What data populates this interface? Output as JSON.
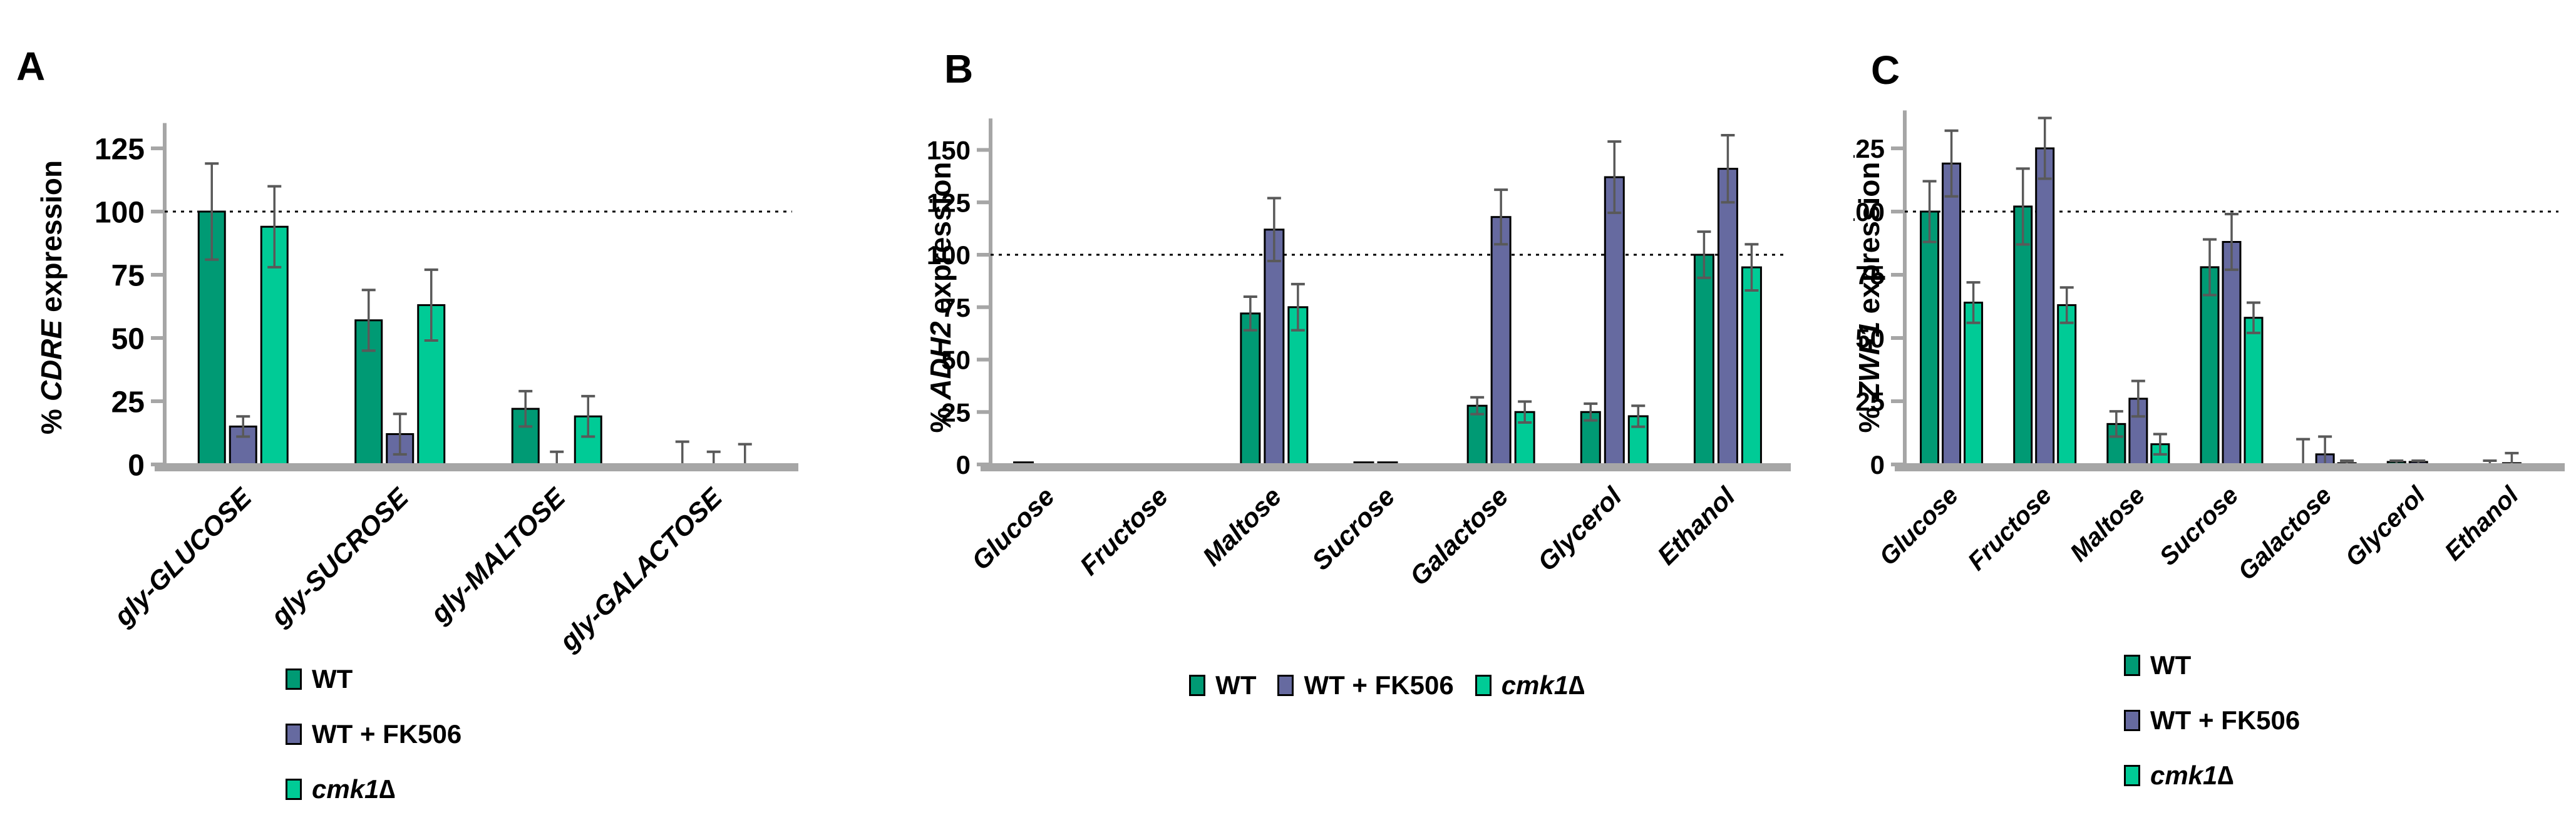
{
  "figure_type": "grouped_bar_chart_panels",
  "style": {
    "background": "#FFFFFF",
    "axis_color": "#A6A6A6",
    "error_bar_color": "#595959",
    "bar_outline_color": "#000000",
    "reference_line_color": "#000000",
    "text_color": "#000000"
  },
  "chart_data": [
    {
      "panel": "A",
      "type": "bar",
      "title": "",
      "ylabel_prefix": "%",
      "ylabel_gene": "CDRE",
      "ylabel_suffix": "expression",
      "ylabel_full": "% CDRE expression",
      "categories": [
        "gly-GLUCOSE",
        "gly-SUCROSE",
        "gly-MALTOSE",
        "gly-GALACTOSE"
      ],
      "series": [
        {
          "name": "WT",
          "color": "#009A74",
          "italic": false,
          "values": [
            100,
            57,
            22,
            0
          ],
          "errors": [
            19,
            12,
            7,
            9
          ]
        },
        {
          "name": "WT + FK506",
          "color": "#666AA0",
          "italic": false,
          "values": [
            15,
            12,
            0,
            0
          ],
          "errors": [
            4,
            8,
            5,
            5
          ]
        },
        {
          "name": "cmk1∆",
          "color": "#00CB96",
          "italic": true,
          "values": [
            94,
            63,
            19,
            0
          ],
          "errors": [
            16,
            14,
            8,
            8
          ]
        }
      ],
      "yticks": [
        0,
        25,
        50,
        75,
        100,
        125
      ],
      "ylim": [
        0,
        135
      ],
      "reference_line": 100,
      "grid": false,
      "legend_position": "bottom",
      "legend_orientation": "vertical"
    },
    {
      "panel": "B",
      "type": "bar",
      "title": "",
      "ylabel_prefix": "%",
      "ylabel_gene": "ADH2",
      "ylabel_suffix": "expression",
      "ylabel_full": "% ADH2 expression",
      "categories": [
        "Glucose",
        "Fructose",
        "Maltose",
        "Sucrose",
        "Galactose",
        "Glycerol",
        "Ethanol"
      ],
      "series": [
        {
          "name": "WT",
          "color": "#009A74",
          "italic": false,
          "values": [
            1,
            0,
            72,
            1,
            28,
            25,
            100
          ],
          "errors": [
            0,
            0,
            8,
            0,
            4,
            4,
            11
          ]
        },
        {
          "name": "WT + FK506",
          "color": "#666AA0",
          "italic": false,
          "values": [
            0,
            0,
            112,
            1,
            118,
            137,
            141
          ],
          "errors": [
            0,
            0,
            15,
            0,
            13,
            17,
            16
          ]
        },
        {
          "name": "cmk1∆",
          "color": "#00CB96",
          "italic": true,
          "values": [
            0,
            0,
            75,
            0,
            25,
            23,
            94
          ],
          "errors": [
            0,
            0,
            11,
            0,
            5,
            5,
            11
          ]
        }
      ],
      "yticks": [
        0,
        25,
        50,
        75,
        100,
        125,
        150
      ],
      "ylim": [
        0,
        165
      ],
      "reference_line": 100,
      "grid": false,
      "legend_position": "bottom",
      "legend_orientation": "horizontal"
    },
    {
      "panel": "C",
      "type": "bar",
      "title": "",
      "ylabel_prefix": "%",
      "ylabel_gene": "ZWF1",
      "ylabel_suffix": "expression",
      "ylabel_full": "% ZWF1 expression",
      "categories": [
        "Glucose",
        "Fructose",
        "Maltose",
        "Sucrose",
        "Galactose",
        "Glycerol",
        "Ethanol"
      ],
      "series": [
        {
          "name": "WT",
          "color": "#009A74",
          "italic": false,
          "values": [
            100,
            102,
            16,
            78,
            0,
            1,
            0
          ],
          "errors": [
            12,
            15,
            5,
            11,
            10,
            0.5,
            1.5
          ]
        },
        {
          "name": "WT + FK506",
          "color": "#666AA0",
          "italic": false,
          "values": [
            119,
            125,
            26,
            88,
            4,
            1,
            0.5
          ],
          "errors": [
            13,
            12,
            7,
            11,
            7,
            0.5,
            4
          ]
        },
        {
          "name": "cmk1∆",
          "color": "#00CB96",
          "italic": true,
          "values": [
            64,
            63,
            8,
            58,
            0.5,
            0,
            0
          ],
          "errors": [
            8,
            7,
            4,
            6,
            1,
            0,
            0
          ]
        }
      ],
      "yticks": [
        0,
        25,
        50,
        75,
        100,
        125
      ],
      "ylim": [
        0,
        140
      ],
      "reference_line": 100,
      "grid": false,
      "legend_position": "bottom",
      "legend_orientation": "vertical"
    }
  ]
}
